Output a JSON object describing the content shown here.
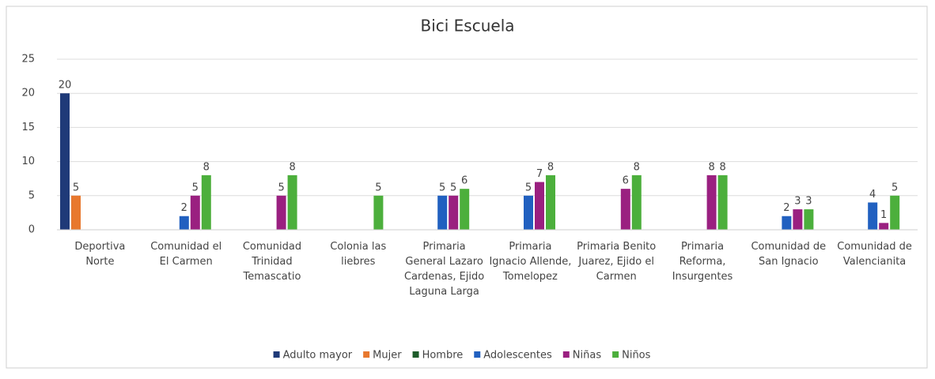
{
  "chart_data": {
    "type": "bar",
    "title": "Bici Escuela",
    "categories": [
      "Deportiva Norte",
      "Comunidad el El Carmen",
      "Comunidad Trinidad Temascatio",
      "Colonia las liebres",
      "Primaria General Lazaro Cardenas, Ejido Laguna Larga",
      "Primaria Ignacio Allende, Tomelopez",
      "Primaria Benito Juarez, Ejido el Carmen",
      "Primaria Reforma, Insurgentes",
      "Comunidad de San Ignacio",
      "Comunidad de Valencianita"
    ],
    "series": [
      {
        "name": "Adulto mayor",
        "color": "#1f3a78",
        "values": [
          20,
          null,
          null,
          null,
          null,
          null,
          null,
          null,
          null,
          null
        ]
      },
      {
        "name": "Mujer",
        "color": "#e8782e",
        "values": [
          5,
          null,
          null,
          null,
          null,
          null,
          null,
          null,
          null,
          null
        ]
      },
      {
        "name": "Hombre",
        "color": "#1e5c2a",
        "values": [
          null,
          null,
          null,
          null,
          null,
          null,
          null,
          null,
          null,
          null
        ]
      },
      {
        "name": "Adolescentes",
        "color": "#2160c0",
        "values": [
          null,
          2,
          null,
          null,
          5,
          5,
          null,
          null,
          2,
          4
        ]
      },
      {
        "name": "Niñas",
        "color": "#9a2080",
        "values": [
          null,
          5,
          5,
          null,
          5,
          7,
          6,
          8,
          3,
          1
        ]
      },
      {
        "name": "Niños",
        "color": "#4caf3c",
        "values": [
          null,
          8,
          8,
          5,
          6,
          8,
          8,
          8,
          3,
          5
        ]
      }
    ],
    "ylim": [
      0,
      25
    ],
    "yticks": [
      0,
      5,
      10,
      15,
      20,
      25
    ],
    "grid": true,
    "legend": "bottom"
  }
}
